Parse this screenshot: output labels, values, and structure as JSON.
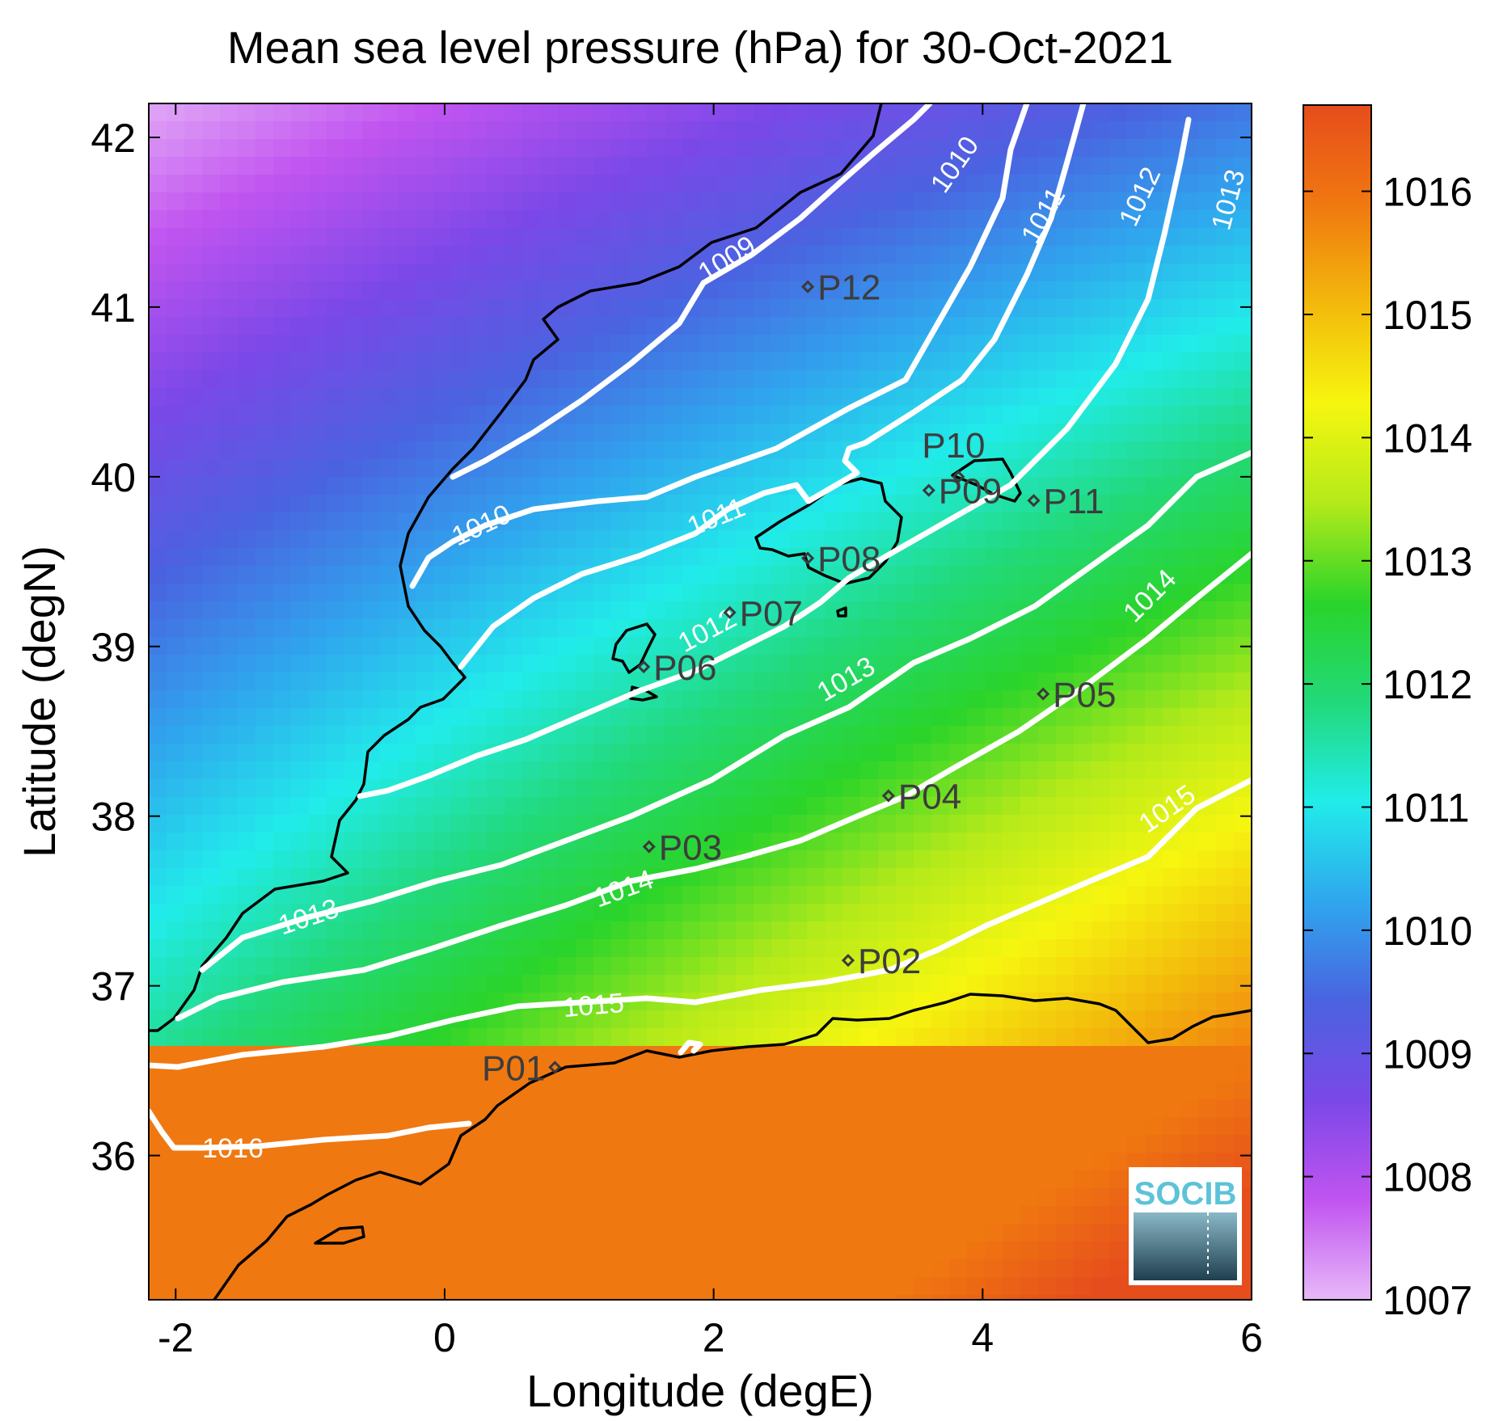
{
  "chart_data": {
    "type": "heatmap",
    "title": "Mean sea level pressure (hPa) for 30-Oct-2021",
    "xlabel": "Longitude (degE)",
    "ylabel": "Latitude (degN)",
    "xlim": [
      -2.2,
      6
    ],
    "ylim": [
      35.15,
      42.2
    ],
    "xticks": [
      -2,
      0,
      2,
      4,
      6
    ],
    "yticks": [
      36,
      37,
      38,
      39,
      40,
      41,
      42
    ],
    "colorbar": {
      "range": [
        1007,
        1016.7
      ],
      "ticks": [
        1007,
        1008,
        1009,
        1010,
        1011,
        1012,
        1013,
        1014,
        1015,
        1016
      ],
      "stops": [
        "#e7b9f8",
        "#c154f0",
        "#7b48e8",
        "#4a63e0",
        "#2fa6ee",
        "#21ecea",
        "#22d97a",
        "#2ad42a",
        "#b4ea1a",
        "#f6f60f",
        "#f3b90c",
        "#f07810",
        "#e64d1c"
      ]
    },
    "contours": [
      {
        "level": 1009,
        "label": "1009"
      },
      {
        "level": 1010,
        "label": "1010"
      },
      {
        "level": 1011,
        "label": "1011"
      },
      {
        "level": 1012,
        "label": "1012"
      },
      {
        "level": 1013,
        "label": "1013"
      },
      {
        "level": 1014,
        "label": "1014"
      },
      {
        "level": 1015,
        "label": "1015"
      },
      {
        "level": 1016,
        "label": "1016"
      }
    ],
    "stations": [
      {
        "name": "P01",
        "lon": 0.82,
        "lat": 36.52
      },
      {
        "name": "P02",
        "lon": 3.0,
        "lat": 37.15
      },
      {
        "name": "P03",
        "lon": 1.52,
        "lat": 37.82
      },
      {
        "name": "P04",
        "lon": 3.3,
        "lat": 38.12
      },
      {
        "name": "P05",
        "lon": 4.45,
        "lat": 38.72
      },
      {
        "name": "P06",
        "lon": 1.48,
        "lat": 38.88
      },
      {
        "name": "P07",
        "lon": 2.12,
        "lat": 39.2
      },
      {
        "name": "P08",
        "lon": 2.7,
        "lat": 39.52
      },
      {
        "name": "P09",
        "lon": 3.6,
        "lat": 39.92
      },
      {
        "name": "P10",
        "lon": 3.82,
        "lat": 40.0
      },
      {
        "name": "P11",
        "lon": 4.38,
        "lat": 39.86
      },
      {
        "name": "P12",
        "lon": 2.7,
        "lat": 41.12
      }
    ],
    "grid": false
  },
  "logo": {
    "text": "SOCIB"
  },
  "colors": {
    "contour": "#ffffff",
    "coast": "#000000",
    "station": "#3a3a3a"
  }
}
